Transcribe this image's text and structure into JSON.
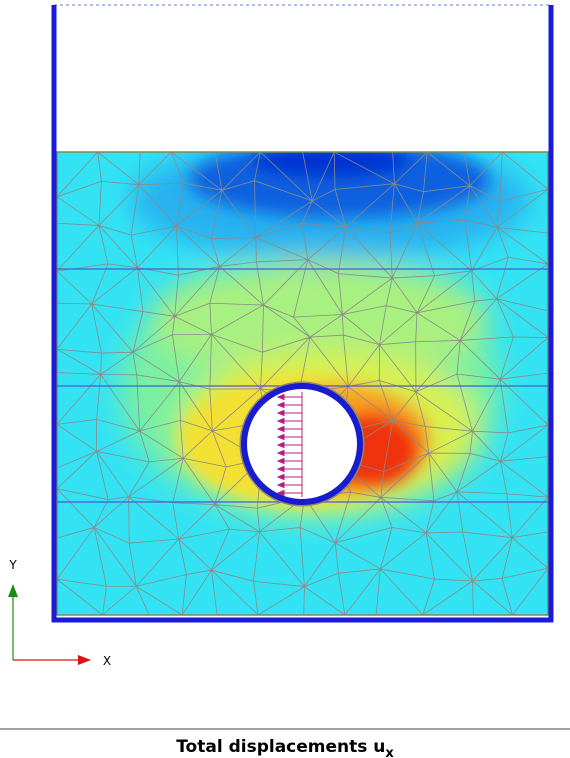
{
  "axes": {
    "y_label": "Y",
    "x_label": "X"
  },
  "caption": {
    "text": "Total displacements u",
    "subscript": "x"
  }
}
